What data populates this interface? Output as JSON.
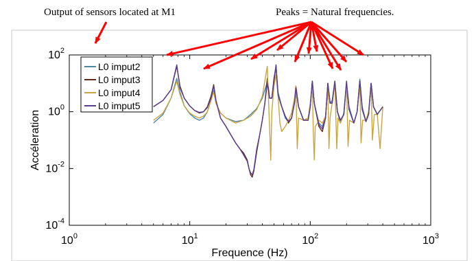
{
  "annotations": {
    "left_text": "Output of sensors located at M1",
    "right_text": "Peaks = Natural frequencies.",
    "arrow_color": "#ff0000"
  },
  "chart_data": {
    "type": "line",
    "title": "",
    "xlabel": "Frequence (Hz)",
    "ylabel": "Accéleration",
    "xscale": "log",
    "yscale": "log",
    "xlim": [
      1,
      1000
    ],
    "ylim": [
      0.0001,
      100
    ],
    "x_ticks": [
      {
        "base": "10",
        "exp": "0"
      },
      {
        "base": "10",
        "exp": "1"
      },
      {
        "base": "10",
        "exp": "2"
      },
      {
        "base": "10",
        "exp": "3"
      }
    ],
    "y_ticks": [
      {
        "base": "10",
        "exp": "-4"
      },
      {
        "base": "10",
        "exp": "-2"
      },
      {
        "base": "10",
        "exp": "0"
      },
      {
        "base": "10",
        "exp": "2"
      }
    ],
    "grid": false,
    "legend_position": "top-left",
    "peak_frequencies_hz": [
      8,
      16,
      45,
      52,
      75,
      105,
      140,
      160,
      200,
      260,
      320
    ],
    "series": [
      {
        "name": "L0 imput2",
        "color": "#4a88a8",
        "points": [
          [
            5,
            0.4
          ],
          [
            6,
            0.8
          ],
          [
            7,
            3
          ],
          [
            7.8,
            15
          ],
          [
            8.3,
            5
          ],
          [
            9,
            1.6
          ],
          [
            10,
            0.85
          ],
          [
            11,
            0.6
          ],
          [
            12,
            0.5
          ],
          [
            13,
            0.6
          ],
          [
            14,
            1
          ],
          [
            15,
            2.5
          ],
          [
            15.8,
            5.5
          ],
          [
            16.5,
            2
          ],
          [
            18,
            0.9
          ],
          [
            20,
            0.6
          ],
          [
            24,
            0.45
          ],
          [
            28,
            0.5
          ],
          [
            32,
            0.8
          ],
          [
            36,
            1.3
          ],
          [
            40,
            3
          ],
          [
            44,
            11
          ],
          [
            46,
            3
          ],
          [
            48,
            3
          ],
          [
            50,
            12
          ],
          [
            52,
            40
          ],
          [
            54,
            5
          ],
          [
            58,
            1.5
          ],
          [
            62,
            0.6
          ],
          [
            66,
            0.45
          ],
          [
            70,
            0.6
          ],
          [
            74,
            2.5
          ],
          [
            76,
            6
          ],
          [
            80,
            1.5
          ],
          [
            88,
            0.5
          ],
          [
            96,
            0.6
          ],
          [
            100,
            1.5
          ],
          [
            104,
            11
          ],
          [
            108,
            2
          ],
          [
            118,
            0.4
          ],
          [
            126,
            0.3
          ],
          [
            134,
            0.7
          ],
          [
            140,
            10
          ],
          [
            146,
            2
          ],
          [
            152,
            2.5
          ],
          [
            160,
            12
          ],
          [
            168,
            1
          ],
          [
            178,
            0.4
          ],
          [
            190,
            0.9
          ],
          [
            200,
            10
          ],
          [
            210,
            1.5
          ],
          [
            230,
            0.4
          ],
          [
            245,
            1
          ],
          [
            258,
            14
          ],
          [
            270,
            1.5
          ],
          [
            290,
            0.45
          ],
          [
            305,
            1
          ],
          [
            320,
            10
          ],
          [
            335,
            1.5
          ],
          [
            360,
            0.8
          ],
          [
            400,
            1.5
          ]
        ]
      },
      {
        "name": "L0 imput3",
        "color": "#5c2a1a",
        "points": [
          [
            5,
            1.5
          ],
          [
            6,
            2.5
          ],
          [
            7,
            6
          ],
          [
            7.8,
            40
          ],
          [
            8.3,
            8
          ],
          [
            9,
            3
          ],
          [
            10,
            1.6
          ],
          [
            11,
            1.1
          ],
          [
            12,
            0.9
          ],
          [
            13,
            1
          ],
          [
            14,
            1.5
          ],
          [
            15,
            3.5
          ],
          [
            15.8,
            9
          ],
          [
            16.5,
            2.5
          ],
          [
            18,
            0.6
          ],
          [
            20,
            0.3
          ],
          [
            22,
            0.15
          ],
          [
            24,
            0.08
          ],
          [
            26,
            0.05
          ],
          [
            28,
            0.035
          ],
          [
            30,
            0.02
          ],
          [
            31,
            0.01
          ],
          [
            32,
            0.006
          ],
          [
            33,
            0.005
          ],
          [
            34,
            0.008
          ],
          [
            36,
            0.04
          ],
          [
            38,
            0.15
          ],
          [
            40,
            0.5
          ],
          [
            42,
            2
          ],
          [
            44,
            15
          ],
          [
            46,
            3
          ],
          [
            48,
            3
          ],
          [
            50,
            15
          ],
          [
            52,
            40
          ],
          [
            54,
            4
          ],
          [
            58,
            1.5
          ],
          [
            62,
            0.7
          ],
          [
            66,
            0.4
          ],
          [
            70,
            0.6
          ],
          [
            74,
            2
          ],
          [
            76,
            8
          ],
          [
            80,
            1.5
          ],
          [
            88,
            0.5
          ],
          [
            96,
            0.5
          ],
          [
            100,
            1.5
          ],
          [
            104,
            12
          ],
          [
            108,
            2
          ],
          [
            118,
            0.3
          ],
          [
            126,
            0.2
          ],
          [
            134,
            0.6
          ],
          [
            140,
            10
          ],
          [
            146,
            2
          ],
          [
            152,
            2
          ],
          [
            160,
            10
          ],
          [
            168,
            1
          ],
          [
            178,
            0.5
          ],
          [
            190,
            0.8
          ],
          [
            200,
            10
          ],
          [
            210,
            1.2
          ],
          [
            230,
            0.4
          ],
          [
            245,
            1
          ],
          [
            258,
            12
          ],
          [
            270,
            1.2
          ],
          [
            290,
            0.45
          ],
          [
            305,
            0.8
          ],
          [
            320,
            10
          ],
          [
            335,
            1.5
          ],
          [
            360,
            0.8
          ],
          [
            400,
            1.5
          ]
        ]
      },
      {
        "name": "L0 imput4",
        "color": "#c9a441",
        "points": [
          [
            5,
            0.5
          ],
          [
            6,
            0.9
          ],
          [
            7,
            3
          ],
          [
            7.8,
            12
          ],
          [
            8.3,
            4
          ],
          [
            9,
            1.6
          ],
          [
            10,
            0.9
          ],
          [
            11,
            0.7
          ],
          [
            12,
            0.6
          ],
          [
            13,
            0.7
          ],
          [
            14,
            1
          ],
          [
            15,
            2.5
          ],
          [
            15.8,
            5
          ],
          [
            16.5,
            2
          ],
          [
            18,
            0.9
          ],
          [
            20,
            0.6
          ],
          [
            24,
            0.4
          ],
          [
            28,
            0.5
          ],
          [
            32,
            0.7
          ],
          [
            36,
            1.2
          ],
          [
            40,
            3.5
          ],
          [
            44,
            40
          ],
          [
            46,
            0.25
          ],
          [
            47,
            0.02
          ],
          [
            48,
            1
          ],
          [
            50,
            8
          ],
          [
            52,
            20
          ],
          [
            54,
            4
          ],
          [
            56,
            0.4
          ],
          [
            58,
            0.2
          ],
          [
            62,
            0.3
          ],
          [
            66,
            0.5
          ],
          [
            70,
            0.9
          ],
          [
            74,
            3
          ],
          [
            76,
            8
          ],
          [
            78,
            0.05
          ],
          [
            80,
            0.6
          ],
          [
            88,
            0.5
          ],
          [
            96,
            0.6
          ],
          [
            100,
            2
          ],
          [
            104,
            10
          ],
          [
            106,
            0.2
          ],
          [
            108,
            0.02
          ],
          [
            110,
            0.3
          ],
          [
            118,
            0.5
          ],
          [
            126,
            0.4
          ],
          [
            134,
            0.7
          ],
          [
            140,
            8
          ],
          [
            143,
            0.05
          ],
          [
            146,
            0.6
          ],
          [
            152,
            2
          ],
          [
            160,
            12
          ],
          [
            166,
            0.05
          ],
          [
            170,
            0.6
          ],
          [
            178,
            0.4
          ],
          [
            190,
            0.8
          ],
          [
            200,
            12
          ],
          [
            206,
            0.06
          ],
          [
            212,
            0.5
          ],
          [
            230,
            0.4
          ],
          [
            245,
            1
          ],
          [
            258,
            10
          ],
          [
            264,
            0.08
          ],
          [
            272,
            0.5
          ],
          [
            290,
            0.5
          ],
          [
            305,
            1
          ],
          [
            320,
            8
          ],
          [
            328,
            0.1
          ],
          [
            340,
            0.8
          ],
          [
            360,
            0.8
          ],
          [
            380,
            0.05
          ],
          [
            400,
            1.5
          ]
        ]
      },
      {
        "name": "L0 imput5",
        "color": "#5a3d8a",
        "points": [
          [
            5,
            1.5
          ],
          [
            6,
            2.5
          ],
          [
            7,
            6
          ],
          [
            7.8,
            45
          ],
          [
            8.3,
            7
          ],
          [
            9,
            3
          ],
          [
            10,
            1.6
          ],
          [
            11,
            1.1
          ],
          [
            12,
            0.95
          ],
          [
            13,
            1
          ],
          [
            14,
            1.4
          ],
          [
            15,
            3
          ],
          [
            15.8,
            8
          ],
          [
            16.5,
            2.5
          ],
          [
            18,
            0.6
          ],
          [
            20,
            0.3
          ],
          [
            22,
            0.15
          ],
          [
            24,
            0.08
          ],
          [
            26,
            0.05
          ],
          [
            28,
            0.03
          ],
          [
            30,
            0.018
          ],
          [
            31,
            0.01
          ],
          [
            32,
            0.007
          ],
          [
            33,
            0.006
          ],
          [
            34,
            0.009
          ],
          [
            36,
            0.05
          ],
          [
            38,
            0.15
          ],
          [
            40,
            0.5
          ],
          [
            42,
            2
          ],
          [
            44,
            10
          ],
          [
            46,
            3
          ],
          [
            48,
            3
          ],
          [
            50,
            12
          ],
          [
            52,
            45
          ],
          [
            54,
            4
          ],
          [
            58,
            1.5
          ],
          [
            62,
            0.7
          ],
          [
            66,
            0.45
          ],
          [
            70,
            0.6
          ],
          [
            74,
            2
          ],
          [
            76,
            7
          ],
          [
            80,
            1.5
          ],
          [
            88,
            0.5
          ],
          [
            96,
            0.5
          ],
          [
            100,
            1.5
          ],
          [
            104,
            12
          ],
          [
            108,
            2
          ],
          [
            118,
            0.35
          ],
          [
            126,
            0.25
          ],
          [
            134,
            0.6
          ],
          [
            140,
            10
          ],
          [
            146,
            2
          ],
          [
            152,
            2
          ],
          [
            160,
            12
          ],
          [
            168,
            1
          ],
          [
            178,
            0.5
          ],
          [
            190,
            0.8
          ],
          [
            200,
            12
          ],
          [
            210,
            1.2
          ],
          [
            230,
            0.4
          ],
          [
            245,
            1
          ],
          [
            258,
            12
          ],
          [
            270,
            1.2
          ],
          [
            290,
            0.45
          ],
          [
            305,
            0.8
          ],
          [
            320,
            10
          ],
          [
            335,
            1.5
          ],
          [
            360,
            0.8
          ],
          [
            400,
            1.5
          ]
        ]
      }
    ]
  }
}
